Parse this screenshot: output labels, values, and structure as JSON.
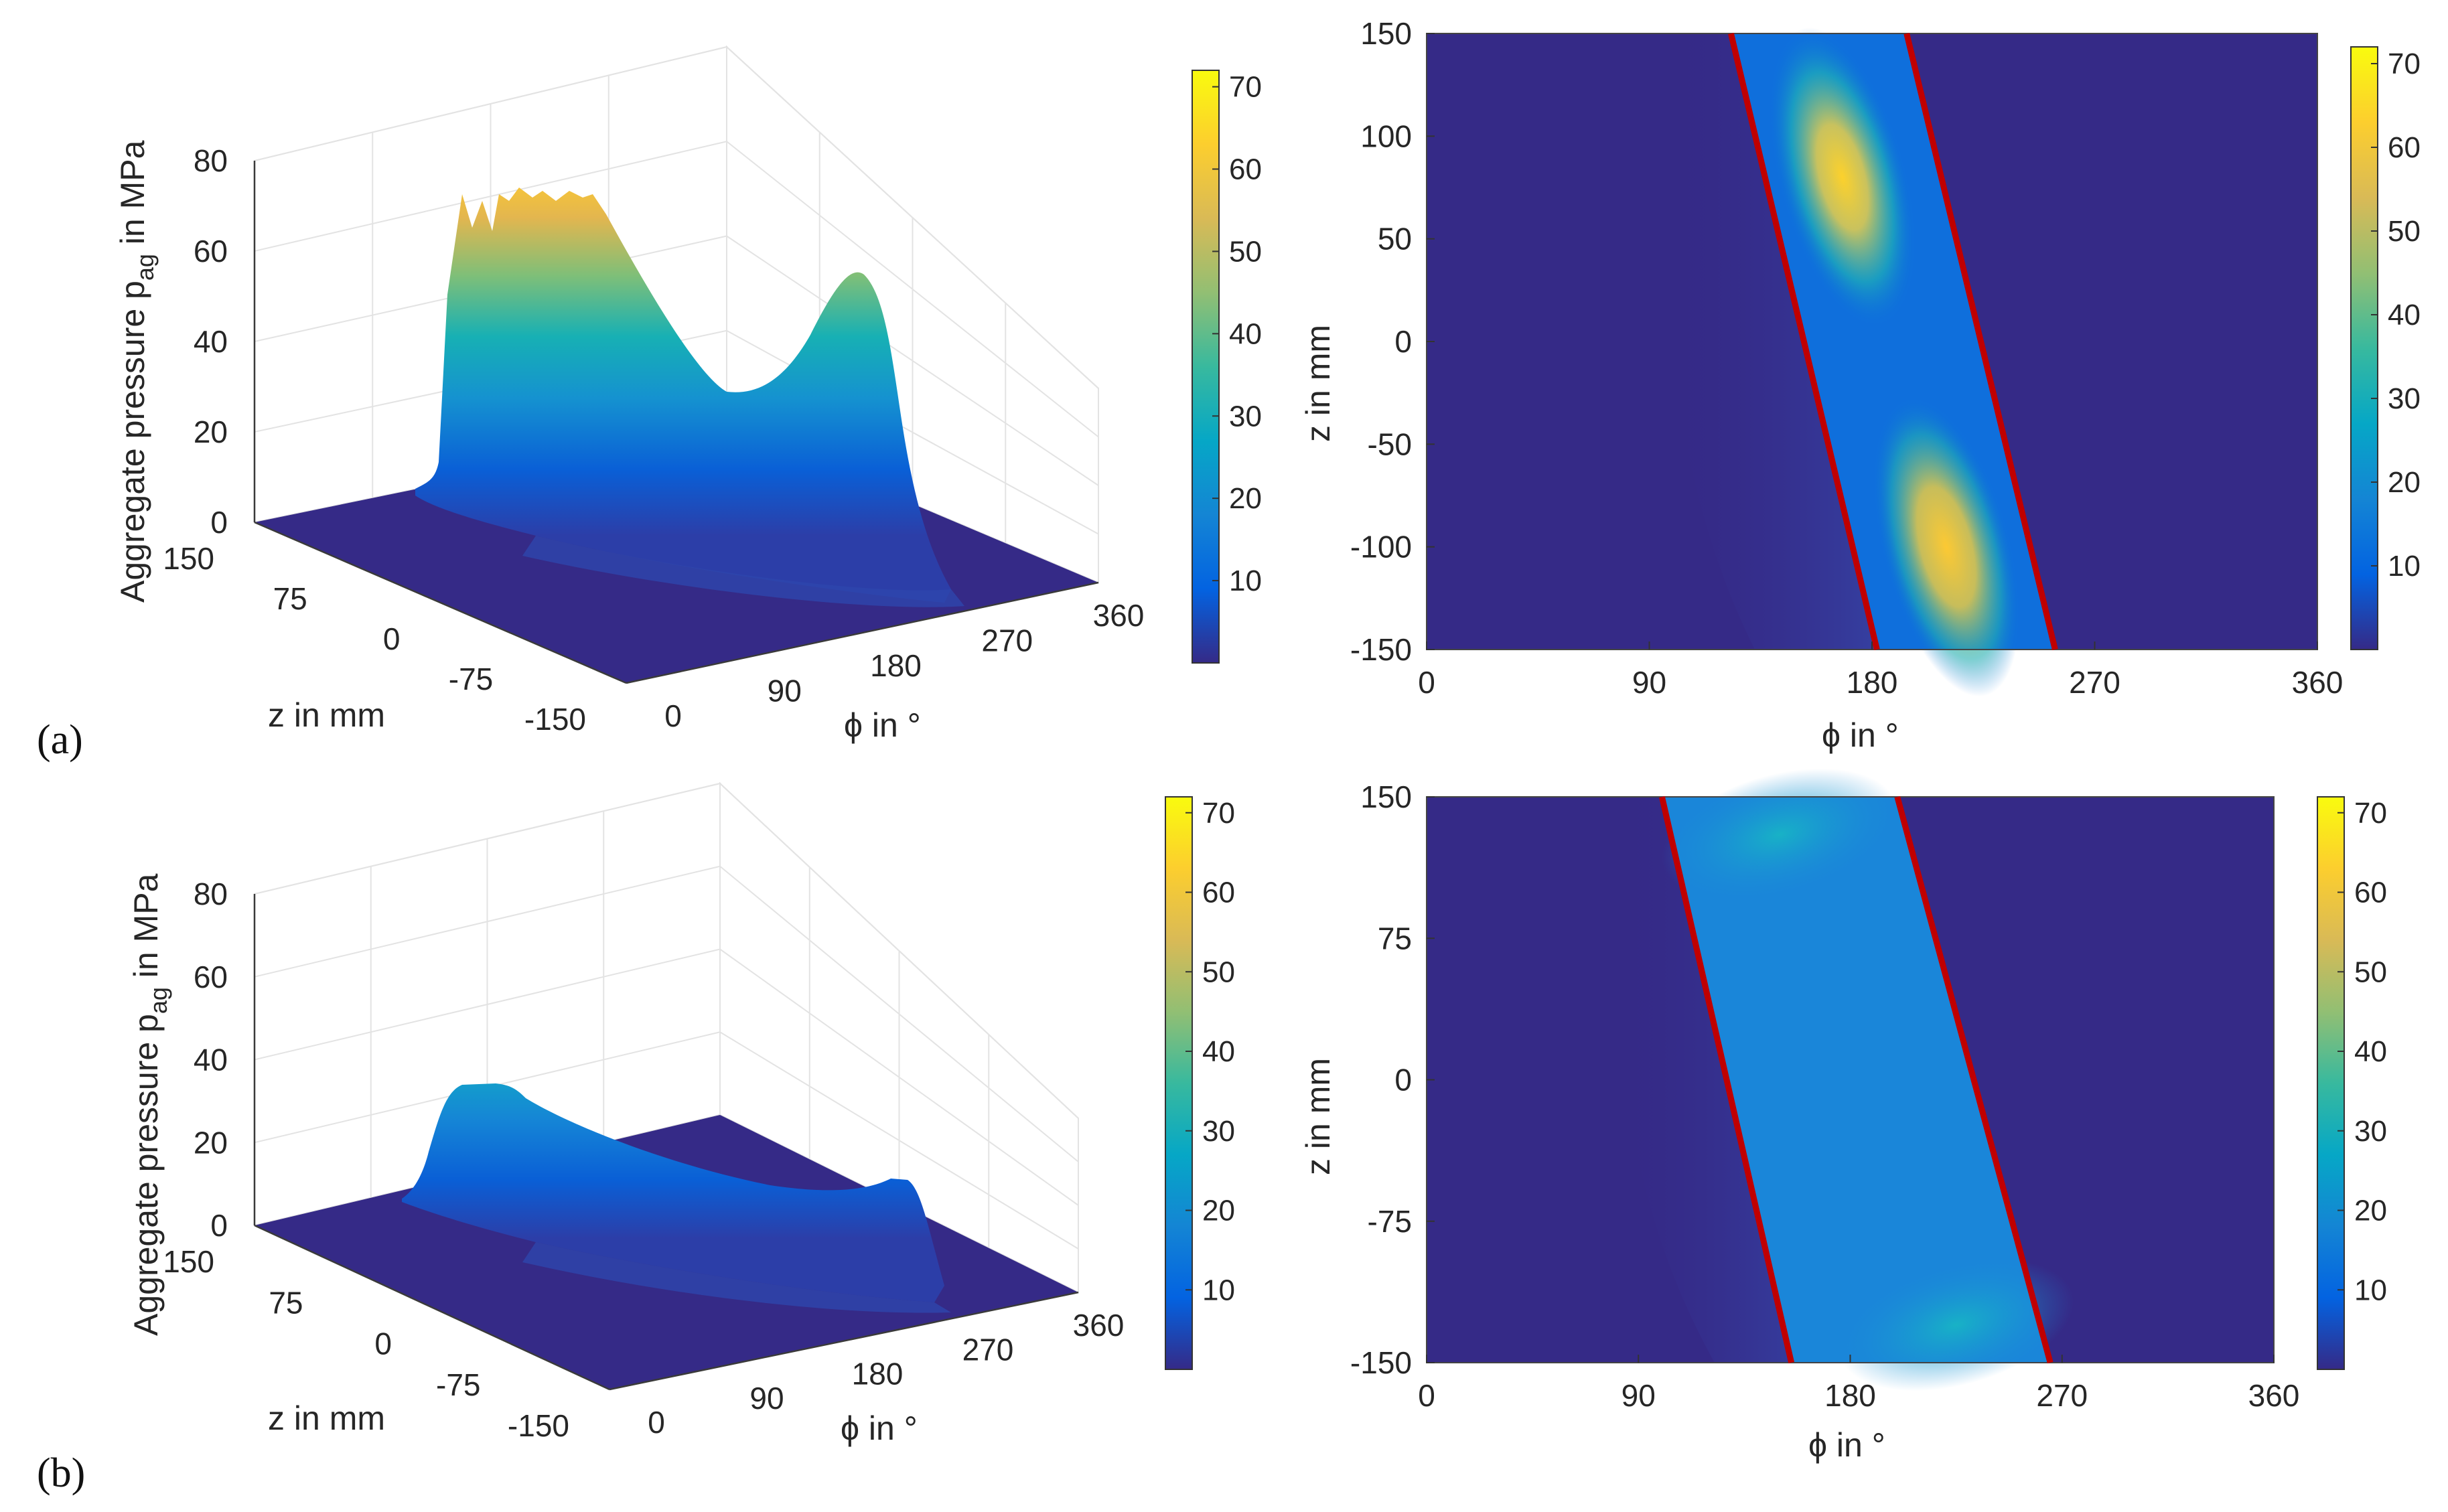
{
  "panel_labels": [
    "(a)",
    "(b)"
  ],
  "colorbar": {
    "ticks": [
      10,
      20,
      30,
      40,
      50,
      60,
      70
    ],
    "range": [
      0,
      72
    ],
    "colors": [
      "#352a87",
      "#0363e1",
      "#1485d4",
      "#06a7c6",
      "#38b99e",
      "#92bf73",
      "#d9ba56",
      "#fcce2e",
      "#f9fb0e"
    ]
  },
  "boundary_line_color": "#c00000",
  "chart_data": [
    {
      "type": "surface",
      "panel": "a",
      "zlabel": "Aggregate pressure p",
      "zlabel_sub": "ag",
      "zlabel_unit": " in MPa",
      "ylabel": "z in mm",
      "xlabel": "ϕ in °",
      "x_ticks": [
        "0",
        "90",
        "180",
        "270",
        "360"
      ],
      "y_ticks": [
        "150",
        "75",
        "0",
        "-75",
        "-150"
      ],
      "z_ticks": [
        "0",
        "20",
        "40",
        "60",
        "80"
      ],
      "xlim": [
        0,
        360
      ],
      "ylim": [
        -150,
        150
      ],
      "zlim": [
        0,
        80
      ],
      "profile_z": [
        150,
        100,
        50,
        0,
        -50,
        -100,
        -150
      ],
      "profile_peak": [
        72,
        68,
        45,
        27,
        40,
        57,
        3
      ],
      "grid": true
    },
    {
      "type": "heatmap",
      "panel": "a",
      "xlabel": "ϕ in °",
      "ylabel": "z in mm",
      "x_ticks": [
        "0",
        "90",
        "180",
        "270",
        "360"
      ],
      "y_ticks": [
        "150",
        "100",
        "50",
        "0",
        "-50",
        "-100",
        "-150"
      ],
      "xlim": [
        0,
        360
      ],
      "ylim": [
        -150,
        150
      ],
      "boundary_lines": [
        {
          "from": [
            123,
            150
          ],
          "to": [
            182,
            -150
          ]
        },
        {
          "from": [
            194,
            150
          ],
          "to": [
            254,
            -150
          ]
        }
      ],
      "hot_spots": [
        {
          "phi": 168,
          "z": 80,
          "value": 70
        },
        {
          "phi": 210,
          "z": -100,
          "value": 68
        }
      ]
    },
    {
      "type": "surface",
      "panel": "b",
      "zlabel": "Aggregate pressure p",
      "zlabel_sub": "ag",
      "zlabel_unit": " in MPa",
      "ylabel": "z in mm",
      "xlabel": "ϕ in °",
      "x_ticks": [
        "0",
        "90",
        "180",
        "270",
        "360"
      ],
      "y_ticks": [
        "150",
        "75",
        "0",
        "-75",
        "-150"
      ],
      "z_ticks": [
        "0",
        "20",
        "40",
        "60",
        "80"
      ],
      "xlim": [
        0,
        360
      ],
      "ylim": [
        -150,
        150
      ],
      "zlim": [
        0,
        80
      ],
      "profile_z": [
        150,
        100,
        50,
        0,
        -50,
        -100,
        -150
      ],
      "profile_peak": [
        33,
        31,
        28,
        26,
        25,
        24,
        3
      ],
      "grid": true
    },
    {
      "type": "heatmap",
      "panel": "b",
      "xlabel": "ϕ in °",
      "ylabel": "z in mm",
      "x_ticks": [
        "0",
        "90",
        "180",
        "270",
        "360"
      ],
      "y_ticks": [
        "150",
        "75",
        "0",
        "-75",
        "-150"
      ],
      "xlim": [
        0,
        360
      ],
      "ylim": [
        -150,
        150
      ],
      "boundary_lines": [
        {
          "from": [
            100,
            150
          ],
          "to": [
            155,
            -150
          ]
        },
        {
          "from": [
            200,
            150
          ],
          "to": [
            265,
            -150
          ]
        }
      ],
      "hot_spots": [
        {
          "phi": 150,
          "z": 130,
          "value": 30
        },
        {
          "phi": 225,
          "z": -130,
          "value": 28
        }
      ]
    }
  ]
}
